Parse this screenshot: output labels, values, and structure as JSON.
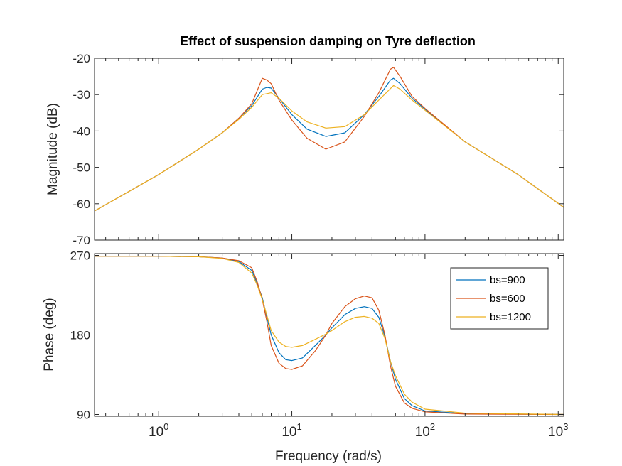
{
  "chart_data": {
    "type": "line",
    "title": "Effect of suspension damping on Tyre deflection",
    "xlabel": "Frequency  (rad/s)",
    "xscale": "log",
    "xlim": [
      0.33,
      1100
    ],
    "xticks": [
      {
        "value": 1,
        "base": "10",
        "exp": "0"
      },
      {
        "value": 10,
        "base": "10",
        "exp": "1"
      },
      {
        "value": 100,
        "base": "10",
        "exp": "2"
      },
      {
        "value": 1000,
        "base": "10",
        "exp": "3"
      }
    ],
    "grid": false,
    "legend_location": "right",
    "legend": [
      "bs=900",
      "bs=600",
      "bs=1200"
    ],
    "colors": {
      "bs=900": "#0072BD",
      "bs=600": "#D95319",
      "bs=1200": "#EDB120"
    },
    "panels": [
      {
        "id": "magnitude",
        "ylabel": "Magnitude (dB)",
        "ylim": [
          -70,
          -20
        ],
        "yticks": [
          -70,
          -60,
          -50,
          -40,
          -30,
          -20
        ],
        "ytick_labels": [
          "-70",
          "-60",
          "-50",
          "-40",
          "-30",
          "-20"
        ],
        "series": [
          {
            "name": "bs=900",
            "x": [
              0.33,
              1,
              2,
              3,
              4,
              5,
              6,
              6.5,
              7,
              8,
              10,
              13,
              18,
              25,
              35,
              45,
              55,
              58,
              65,
              80,
              100,
              200,
              500,
              1100
            ],
            "y": [
              -62,
              -52,
              -45,
              -40.5,
              -36.5,
              -33,
              -28.5,
              -28,
              -28.2,
              -31,
              -35.5,
              -39.5,
              -41.5,
              -40.5,
              -35.5,
              -30.5,
              -26,
              -25.5,
              -27,
              -31,
              -34,
              -43,
              -52,
              -61
            ]
          },
          {
            "name": "bs=600",
            "x": [
              0.33,
              1,
              2,
              3,
              4,
              5,
              6,
              6.5,
              7,
              8,
              10,
              13,
              18,
              25,
              35,
              45,
              55,
              58,
              65,
              80,
              100,
              200,
              500,
              1100
            ],
            "y": [
              -62,
              -52,
              -45,
              -40.5,
              -36.5,
              -32.5,
              -25.5,
              -26,
              -27,
              -31.5,
              -37,
              -42,
              -45,
              -43,
              -36,
              -29.5,
              -23,
              -22.5,
              -25,
              -30.5,
              -33.8,
              -43,
              -52,
              -61
            ]
          },
          {
            "name": "bs=1200",
            "x": [
              0.33,
              1,
              2,
              3,
              4,
              5,
              6,
              7,
              8,
              10,
              13,
              18,
              25,
              35,
              45,
              58,
              65,
              80,
              100,
              200,
              500,
              1100
            ],
            "y": [
              -62,
              -52,
              -45,
              -40.5,
              -36.8,
              -33.5,
              -30,
              -29.5,
              -31,
              -34.5,
              -37.5,
              -39.2,
              -38.8,
              -35.5,
              -31.5,
              -27.5,
              -28.5,
              -31.5,
              -34.3,
              -43,
              -52,
              -61
            ]
          }
        ]
      },
      {
        "id": "phase",
        "ylabel": "Phase (deg)",
        "ylim": [
          88,
          272
        ],
        "yticks": [
          90,
          180,
          270
        ],
        "ytick_labels": [
          "90",
          "180",
          "270"
        ],
        "series": [
          {
            "name": "bs=900",
            "x": [
              0.33,
              1,
              2,
              3,
              4,
              5,
              5.5,
              6,
              6.5,
              7,
              8,
              9,
              10,
              12,
              15,
              18,
              20,
              25,
              30,
              35,
              40,
              45,
              50,
              55,
              60,
              70,
              80,
              100,
              200,
              1100
            ],
            "y": [
              269,
              269,
              268.5,
              267,
              263,
              253,
              238,
              222,
              200,
              180,
              160,
              152,
              151,
              154,
              168,
              180,
              188,
              203,
              210,
              212,
              210,
              200,
              178,
              150,
              130,
              108,
              100,
              94,
              91,
              90
            ]
          },
          {
            "name": "bs=600",
            "x": [
              0.33,
              1,
              2,
              3,
              4,
              5,
              5.5,
              6,
              6.5,
              7,
              8,
              9,
              10,
              12,
              15,
              18,
              20,
              25,
              30,
              35,
              40,
              45,
              50,
              55,
              60,
              70,
              80,
              100,
              200,
              1100
            ],
            "y": [
              269,
              269,
              268.5,
              267,
              264,
              256,
              240,
              220,
              195,
              168,
              148,
              142,
              141,
              145,
              162,
              180,
              193,
              212,
              221,
              224,
              222,
              208,
              180,
              145,
              122,
              103,
              97,
              93,
              90.5,
              90
            ]
          },
          {
            "name": "bs=1200",
            "x": [
              0.33,
              1,
              2,
              3,
              4,
              5,
              5.5,
              6,
              6.5,
              7,
              8,
              9,
              10,
              12,
              15,
              18,
              20,
              25,
              30,
              35,
              40,
              45,
              50,
              55,
              60,
              70,
              80,
              100,
              200,
              1100
            ],
            "y": [
              269,
              269,
              268.5,
              266.5,
              262,
              250,
              236,
              220,
              202,
              185,
              172,
              167,
              166,
              168,
              175,
              181,
              185,
              195,
              200,
              201,
              199,
              193,
              176,
              150,
              134,
              113,
              104,
              96,
              91.5,
              90
            ]
          }
        ]
      }
    ]
  }
}
